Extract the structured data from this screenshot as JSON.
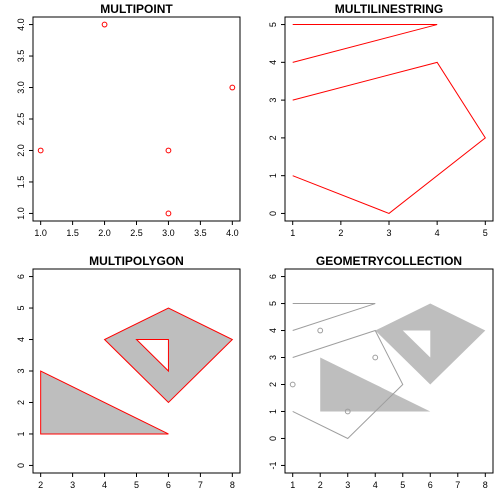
{
  "chart_data": [
    {
      "type": "scatter",
      "title": "MULTIPOINT",
      "xlim": [
        1,
        4
      ],
      "ylim": [
        1,
        4
      ],
      "xticks": [
        1.0,
        1.5,
        2.0,
        2.5,
        3.0,
        3.5,
        4.0
      ],
      "yticks": [
        1.0,
        1.5,
        2.0,
        2.5,
        3.0,
        3.5,
        4.0
      ],
      "xtick_labels": [
        "1.0",
        "1.5",
        "2.0",
        "2.5",
        "3.0",
        "3.5",
        "4.0"
      ],
      "ytick_labels": [
        "1.0",
        "1.5",
        "2.0",
        "2.5",
        "3.0",
        "3.5",
        "4.0"
      ],
      "points": [
        [
          3,
          1
        ],
        [
          4,
          3
        ],
        [
          2,
          4
        ],
        [
          1,
          2
        ],
        [
          3,
          2
        ]
      ],
      "color": "#ff0000"
    },
    {
      "type": "line",
      "title": "MULTILINESTRING",
      "xlim": [
        1,
        5
      ],
      "ylim": [
        0,
        5
      ],
      "xticks": [
        1,
        2,
        3,
        4,
        5
      ],
      "yticks": [
        0,
        1,
        2,
        3,
        4,
        5
      ],
      "xtick_labels": [
        "1",
        "2",
        "3",
        "4",
        "5"
      ],
      "ytick_labels": [
        "0",
        "1",
        "2",
        "3",
        "4",
        "5"
      ],
      "lines": [
        [
          [
            1,
            5
          ],
          [
            4,
            5
          ],
          [
            1,
            4
          ]
        ],
        [
          [
            1,
            3
          ],
          [
            4,
            4
          ],
          [
            5,
            2
          ],
          [
            3,
            0
          ],
          [
            1,
            1
          ]
        ]
      ],
      "color": "#ff0000"
    },
    {
      "type": "polygon",
      "title": "MULTIPOLYGON",
      "xlim": [
        2,
        8
      ],
      "ylim": [
        0,
        6
      ],
      "xticks": [
        2,
        3,
        4,
        5,
        6,
        7,
        8
      ],
      "yticks": [
        0,
        1,
        2,
        3,
        4,
        5,
        6
      ],
      "xtick_labels": [
        "2",
        "3",
        "4",
        "5",
        "6",
        "7",
        "8"
      ],
      "ytick_labels": [
        "0",
        "1",
        "2",
        "3",
        "4",
        "5",
        "6"
      ],
      "polygons": [
        {
          "rings": [
            [
              [
                2,
                1
              ],
              [
                6,
                1
              ],
              [
                2,
                3
              ],
              [
                2,
                1
              ]
            ]
          ]
        },
        {
          "rings": [
            [
              [
                4,
                4
              ],
              [
                6,
                2
              ],
              [
                8,
                4
              ],
              [
                6,
                5
              ],
              [
                4,
                4
              ]
            ],
            [
              [
                5,
                4
              ],
              [
                6,
                4
              ],
              [
                6,
                3
              ],
              [
                5,
                4
              ]
            ]
          ]
        }
      ],
      "fill": "#bebebe",
      "border": "#ff0000"
    },
    {
      "type": "geometrycollection",
      "title": "GEOMETRYCOLLECTION",
      "xlim": [
        1,
        8
      ],
      "ylim": [
        -1,
        6
      ],
      "xticks": [
        1,
        2,
        3,
        4,
        5,
        6,
        7,
        8
      ],
      "yticks": [
        -1,
        0,
        1,
        2,
        3,
        4,
        5,
        6
      ],
      "xtick_labels": [
        "1",
        "2",
        "3",
        "4",
        "5",
        "6",
        "7",
        "8"
      ],
      "ytick_labels": [
        "-1",
        "0",
        "1",
        "2",
        "3",
        "4",
        "5",
        "6"
      ],
      "points": [
        [
          3,
          1
        ],
        [
          4,
          3
        ],
        [
          2,
          4
        ],
        [
          1,
          2
        ]
      ],
      "lines": [
        [
          [
            1,
            5
          ],
          [
            4,
            5
          ],
          [
            1,
            4
          ]
        ],
        [
          [
            1,
            3
          ],
          [
            4,
            4
          ],
          [
            5,
            2
          ],
          [
            3,
            0
          ],
          [
            1,
            1
          ]
        ]
      ],
      "polygons": [
        {
          "rings": [
            [
              [
                2,
                1
              ],
              [
                6,
                1
              ],
              [
                2,
                3
              ],
              [
                2,
                1
              ]
            ]
          ]
        },
        {
          "rings": [
            [
              [
                4,
                4
              ],
              [
                6,
                2
              ],
              [
                8,
                4
              ],
              [
                6,
                5
              ],
              [
                4,
                4
              ]
            ],
            [
              [
                5,
                4
              ],
              [
                6,
                4
              ],
              [
                6,
                3
              ],
              [
                5,
                4
              ]
            ]
          ]
        }
      ],
      "fill": "#bebebe",
      "line_color": "#9e9e9e"
    }
  ]
}
